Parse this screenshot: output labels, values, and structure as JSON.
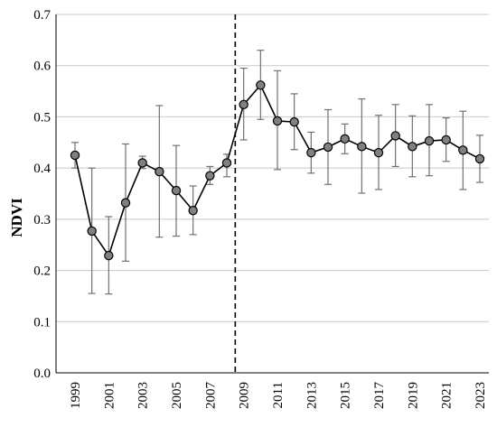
{
  "chart_data": {
    "type": "line",
    "title": "",
    "xlabel": "",
    "ylabel": "NDVI",
    "ylim": [
      0,
      0.7
    ],
    "yticks": [
      "0.0",
      "0.1",
      "0.2",
      "0.3",
      "0.4",
      "0.5",
      "0.6",
      "0.7"
    ],
    "xlim": [
      1999,
      2023
    ],
    "xticks": [
      "1999",
      "2001",
      "2003",
      "2005",
      "2007",
      "2009",
      "2011",
      "2013",
      "2015",
      "2017",
      "2019",
      "2021",
      "2023"
    ],
    "grid": "horizontal",
    "legend": "none",
    "reference_line": {
      "x": 2008.5,
      "style": "dashed"
    },
    "series": [
      {
        "x": [
          1999,
          2000,
          2001,
          2002,
          2003,
          2004,
          2005,
          2006,
          2007,
          2008,
          2009,
          2010,
          2011,
          2012,
          2013,
          2014,
          2015,
          2016,
          2017,
          2018,
          2019,
          2020,
          2021,
          2022,
          2023
        ],
        "values": [
          0.425,
          0.277,
          0.229,
          0.332,
          0.41,
          0.393,
          0.356,
          0.317,
          0.385,
          0.41,
          0.524,
          0.562,
          0.492,
          0.49,
          0.43,
          0.441,
          0.457,
          0.442,
          0.43,
          0.463,
          0.442,
          0.453,
          0.455,
          0.435,
          0.418
        ],
        "error_low": [
          0.4,
          0.155,
          0.154,
          0.218,
          0.399,
          0.265,
          0.267,
          0.27,
          0.368,
          0.383,
          0.455,
          0.495,
          0.397,
          0.436,
          0.39,
          0.368,
          0.428,
          0.351,
          0.358,
          0.403,
          0.383,
          0.385,
          0.413,
          0.358,
          0.372
        ],
        "error_high": [
          0.45,
          0.4,
          0.305,
          0.447,
          0.423,
          0.522,
          0.444,
          0.365,
          0.403,
          0.427,
          0.595,
          0.63,
          0.59,
          0.545,
          0.47,
          0.514,
          0.486,
          0.535,
          0.503,
          0.524,
          0.502,
          0.524,
          0.498,
          0.511,
          0.464
        ]
      }
    ]
  },
  "style": {
    "marker_fill": "#808080",
    "line_color": "#000000",
    "grid_color": "#c8c8c8",
    "error_color": "#707070"
  }
}
